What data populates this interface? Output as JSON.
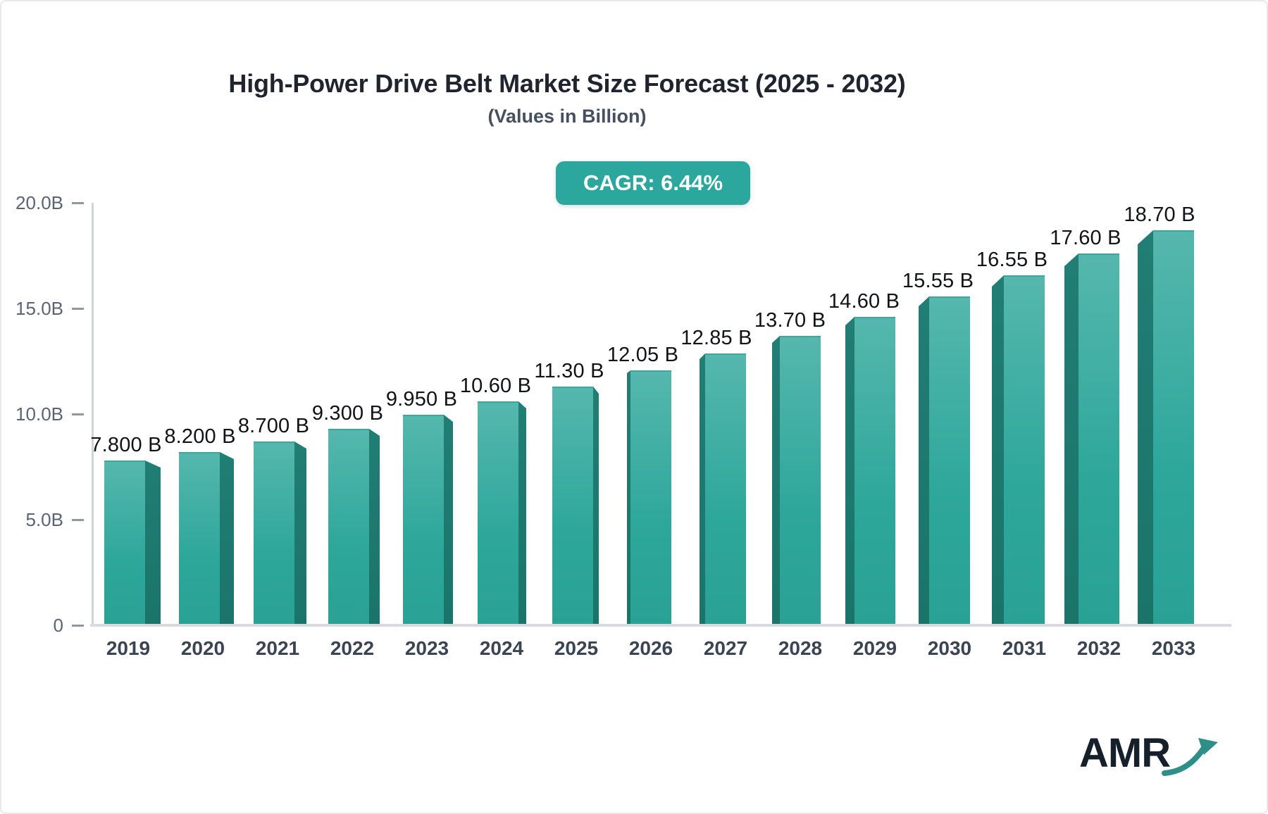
{
  "header": {
    "title": "High-Power Drive Belt Market Size Forecast (2025 - 2032)",
    "subtitle": "(Values in Billion)"
  },
  "badge": {
    "label": "CAGR: 6.44%"
  },
  "logo": {
    "text": "AMR",
    "icon": "trend-arrow"
  },
  "colors": {
    "accent_teal": "#2ba79d",
    "bar_face_top": "#55b7ad",
    "bar_face_bottom": "#29a295",
    "bar_side": "#1d7a70",
    "axis_gray": "#d9dade",
    "y_label_gray": "#5a6473",
    "x_label_slate": "#3a4452",
    "value_label_dark": "#101317",
    "badge_text": "#ffffff"
  },
  "chart_data": {
    "type": "bar",
    "title": "High-Power Drive Belt Market Size Forecast (2025 - 2032)",
    "subtitle": "(Values in Billion)",
    "xlabel": "",
    "ylabel": "",
    "ylim": [
      0,
      20
    ],
    "grid": false,
    "legend": "none",
    "categories": [
      "2019",
      "2020",
      "2021",
      "2022",
      "2023",
      "2024",
      "2025",
      "2026",
      "2027",
      "2028",
      "2029",
      "2030",
      "2031",
      "2032",
      "2033"
    ],
    "values": [
      7.8,
      8.2,
      8.7,
      9.3,
      9.95,
      10.6,
      11.3,
      12.05,
      12.85,
      13.7,
      14.6,
      15.55,
      16.55,
      17.6,
      18.7
    ],
    "value_labels": [
      "7.800 B",
      "8.200 B",
      "8.700 B",
      "9.300 B",
      "9.950 B",
      "10.60 B",
      "11.30 B",
      "12.05 B",
      "12.85 B",
      "13.70 B",
      "14.60 B",
      "15.55 B",
      "16.55 B",
      "17.60 B",
      "18.70 B"
    ],
    "yticks": [
      {
        "value": 0,
        "label": "0"
      },
      {
        "value": 5,
        "label": "5.0B"
      },
      {
        "value": 10,
        "label": "10.0B"
      },
      {
        "value": 15,
        "label": "15.0B"
      },
      {
        "value": 20,
        "label": "20.0B"
      }
    ],
    "annotation": "CAGR: 6.44%"
  }
}
